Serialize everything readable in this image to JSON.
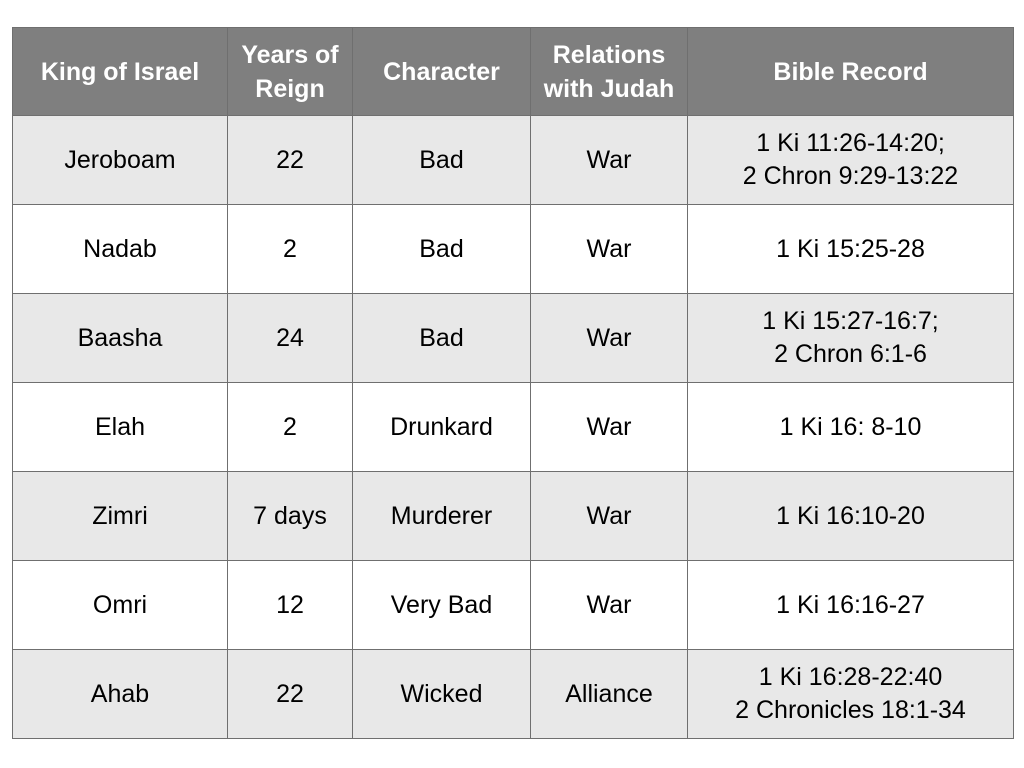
{
  "table": {
    "headers": [
      "King of Israel",
      "Years of\nReign",
      "Character",
      "Relations\nwith Judah",
      "Bible Record"
    ],
    "rows": [
      {
        "king": "Jeroboam",
        "years": "22",
        "character": "Bad",
        "relations": "War",
        "record": "1 Ki 11:26-14:20;\n2 Chron 9:29-13:22"
      },
      {
        "king": "Nadab",
        "years": "2",
        "character": "Bad",
        "relations": "War",
        "record": "1 Ki 15:25-28"
      },
      {
        "king": "Baasha",
        "years": "24",
        "character": "Bad",
        "relations": "War",
        "record": "1 Ki 15:27-16:7;\n2 Chron 6:1-6"
      },
      {
        "king": "Elah",
        "years": "2",
        "character": "Drunkard",
        "relations": "War",
        "record": "1 Ki 16: 8-10"
      },
      {
        "king": "Zimri",
        "years": "7 days",
        "character": "Murderer",
        "relations": "War",
        "record": "1 Ki 16:10-20"
      },
      {
        "king": "Omri",
        "years": "12",
        "character": "Very Bad",
        "relations": "War",
        "record": "1 Ki 16:16-27"
      },
      {
        "king": "Ahab",
        "years": "22",
        "character": "Wicked",
        "relations": "Alliance",
        "record": "1 Ki 16:28-22:40\n2 Chronicles 18:1-34"
      }
    ]
  },
  "colors": {
    "header_bg": "#7f7f7f",
    "header_text": "#ffffff",
    "row_shaded": "#e8e8e8",
    "row_plain": "#ffffff",
    "border": "#6f6f6f"
  }
}
